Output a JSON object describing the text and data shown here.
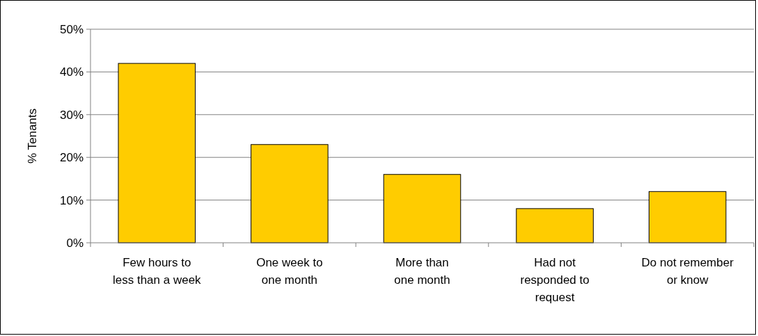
{
  "chart_data": {
    "type": "bar",
    "ylabel": "% Tenants",
    "categories": [
      "Few hours to\nless than a week",
      "One week to\none month",
      "More than\none month",
      "Had not\nresponded to\nrequest",
      "Do not remember\nor know"
    ],
    "values": [
      42,
      23,
      16,
      8,
      12
    ],
    "color": "#ffcc00",
    "ylim": [
      0,
      50
    ],
    "yticks": [
      {
        "value": 0,
        "label": "0%"
      },
      {
        "value": 10,
        "label": "10%"
      },
      {
        "value": 20,
        "label": "20%"
      },
      {
        "value": 30,
        "label": "30%"
      },
      {
        "value": 40,
        "label": "40%"
      },
      {
        "value": 50,
        "label": "50%"
      }
    ],
    "grid": "y"
  }
}
